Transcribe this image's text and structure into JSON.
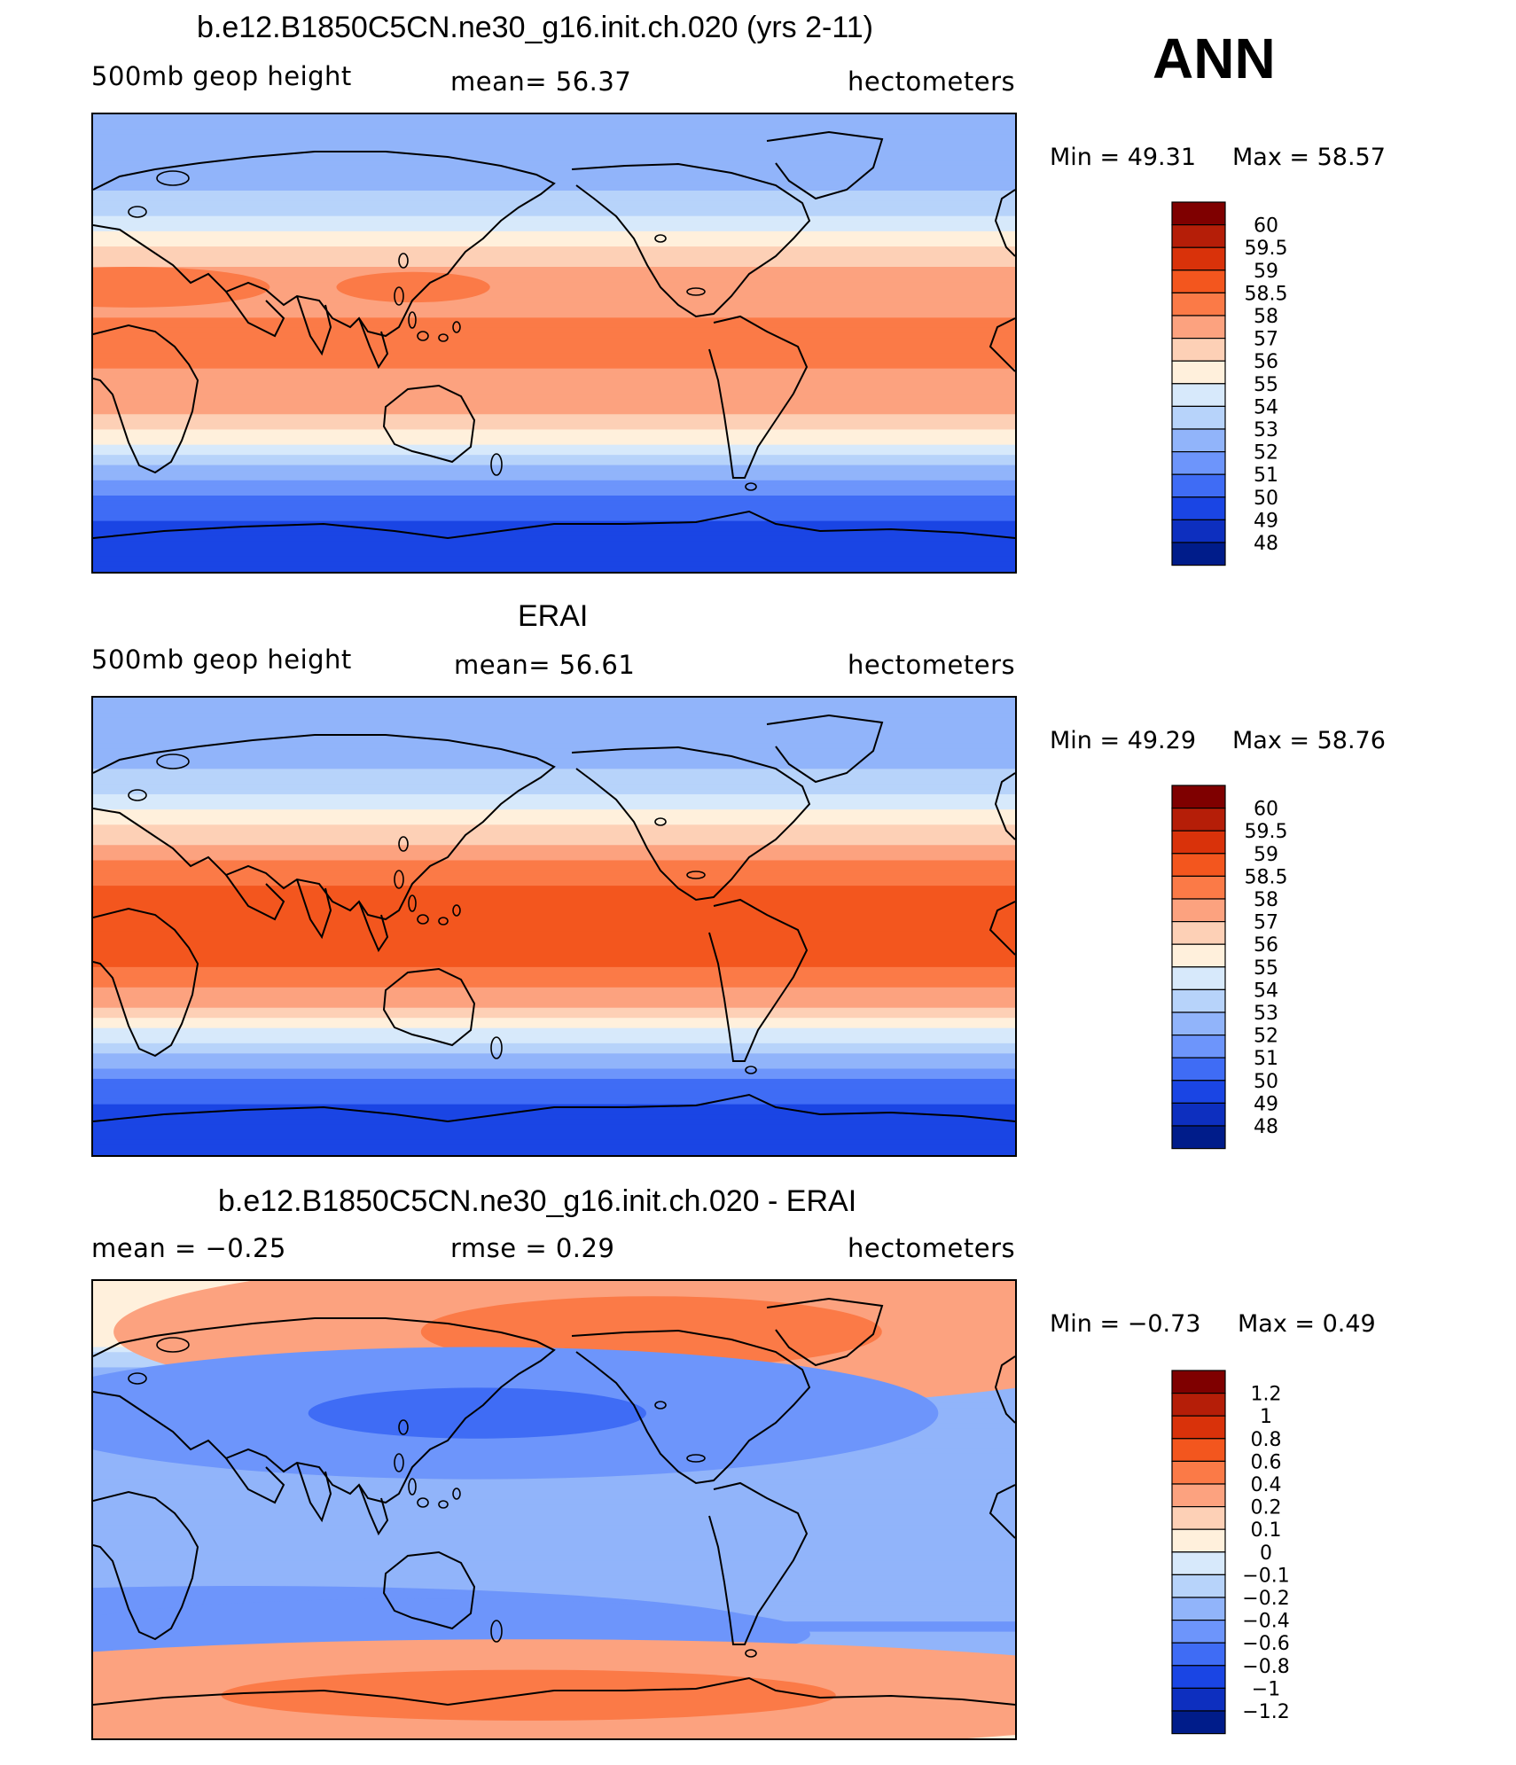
{
  "annual_label": "ANN",
  "chart_data": [
    {
      "type": "heatmap",
      "title": "b.e12.B1850C5CN.ne30_g16.init.ch.020 (yrs 2-11)",
      "variable": "500mb geop height",
      "stat_text": "mean=   56.37",
      "units": "hectometers",
      "min_text": "Min =   49.31",
      "max_text": "Max =   58.57",
      "min": 49.31,
      "max": 58.57,
      "mean": 56.37,
      "xlim": [
        0,
        360
      ],
      "ylim": [
        -90,
        90
      ],
      "colorbar_levels": [
        "60",
        "59.5",
        "59",
        "58.5",
        "58",
        "57",
        "56",
        "55",
        "54",
        "53",
        "52",
        "51",
        "50",
        "49",
        "48"
      ],
      "colorbar_colors": [
        "#7f0000",
        "#b51e08",
        "#d9320a",
        "#f3561e",
        "#fb7a47",
        "#fca27f",
        "#fdd0b6",
        "#fff0dc",
        "#d7e9fb",
        "#b7d3fa",
        "#91b4fa",
        "#6d95fb",
        "#3f6cf5",
        "#1a45e4",
        "#0d2fbf",
        "#001c8a"
      ],
      "zonal_profile": {
        "lat": [
          -90,
          -80,
          -70,
          -65,
          -60,
          -55,
          -50,
          -45,
          -40,
          -35,
          -30,
          -25,
          -20,
          -10,
          0,
          10,
          20,
          25,
          30,
          35,
          40,
          45,
          50,
          55,
          60,
          65,
          70,
          75,
          80,
          90
        ],
        "value": [
          49.4,
          49.5,
          49.9,
          50.4,
          51.0,
          51.8,
          52.7,
          53.7,
          54.8,
          55.9,
          56.7,
          57.4,
          57.8,
          58.0,
          58.0,
          58.0,
          57.9,
          57.6,
          57.1,
          56.4,
          55.6,
          54.8,
          54.0,
          53.4,
          52.9,
          52.6,
          52.4,
          52.3,
          52.2,
          52.1
        ]
      }
    },
    {
      "type": "heatmap",
      "title": "ERAI",
      "variable": "500mb geop height",
      "stat_text": "mean=   56.61",
      "units": "hectometers",
      "min_text": "Min =   49.29",
      "max_text": "Max =   58.76",
      "min": 49.29,
      "max": 58.76,
      "mean": 56.61,
      "xlim": [
        0,
        360
      ],
      "ylim": [
        -90,
        90
      ],
      "colorbar_levels": [
        "60",
        "59.5",
        "59",
        "58.5",
        "58",
        "57",
        "56",
        "55",
        "54",
        "53",
        "52",
        "51",
        "50",
        "49",
        "48"
      ],
      "colorbar_colors": [
        "#7f0000",
        "#b51e08",
        "#d9320a",
        "#f3561e",
        "#fb7a47",
        "#fca27f",
        "#fdd0b6",
        "#fff0dc",
        "#d7e9fb",
        "#b7d3fa",
        "#91b4fa",
        "#6d95fb",
        "#3f6cf5",
        "#1a45e4",
        "#0d2fbf",
        "#001c8a"
      ],
      "zonal_profile": {
        "lat": [
          -90,
          -80,
          -70,
          -65,
          -60,
          -55,
          -50,
          -45,
          -40,
          -35,
          -30,
          -25,
          -20,
          -10,
          0,
          10,
          20,
          25,
          30,
          35,
          40,
          45,
          50,
          55,
          60,
          65,
          70,
          75,
          80,
          90
        ],
        "value": [
          49.4,
          49.6,
          50.0,
          50.5,
          51.1,
          52.0,
          53.0,
          54.0,
          55.1,
          56.2,
          57.2,
          57.9,
          58.4,
          58.6,
          58.6,
          58.6,
          58.4,
          58.0,
          57.4,
          56.7,
          55.9,
          55.1,
          54.3,
          53.7,
          53.1,
          52.8,
          52.5,
          52.3,
          52.2,
          52.1
        ]
      }
    },
    {
      "type": "heatmap",
      "title": "b.e12.B1850C5CN.ne30_g16.init.ch.020 - ERAI",
      "variable_text": "mean =   −0.25",
      "stat_text": "rmse =    0.29",
      "units": "hectometers",
      "min_text": "Min =   −0.73",
      "max_text": "Max =    0.49",
      "min": -0.73,
      "max": 0.49,
      "mean": -0.25,
      "rmse": 0.29,
      "xlim": [
        0,
        360
      ],
      "ylim": [
        -90,
        90
      ],
      "colorbar_levels": [
        "1.2",
        "1",
        "0.8",
        "0.6",
        "0.4",
        "0.2",
        "0.1",
        "0",
        "−0.1",
        "−0.2",
        "−0.4",
        "−0.6",
        "−0.8",
        "−1",
        "−1.2"
      ],
      "colorbar_colors": [
        "#7f0000",
        "#b51e08",
        "#d9320a",
        "#f3561e",
        "#fb7a47",
        "#fca27f",
        "#fdd0b6",
        "#fff0dc",
        "#d7e9fb",
        "#b7d3fa",
        "#91b4fa",
        "#6d95fb",
        "#3f6cf5",
        "#1a45e4",
        "#0d2fbf",
        "#001c8a"
      ],
      "zonal_profile": {
        "lat": [
          -90,
          -80,
          -75,
          -70,
          -65,
          -60,
          -55,
          -50,
          -45,
          -40,
          -30,
          -20,
          0,
          20,
          30,
          40,
          50,
          60,
          65,
          70,
          75,
          80,
          90
        ],
        "value": [
          0.05,
          0.05,
          0.12,
          0.02,
          -0.15,
          -0.3,
          -0.35,
          -0.38,
          -0.42,
          -0.35,
          -0.28,
          -0.25,
          -0.25,
          -0.28,
          -0.3,
          -0.3,
          -0.26,
          -0.15,
          0.05,
          0.1,
          0.08,
          0.06,
          0.05
        ]
      }
    }
  ]
}
